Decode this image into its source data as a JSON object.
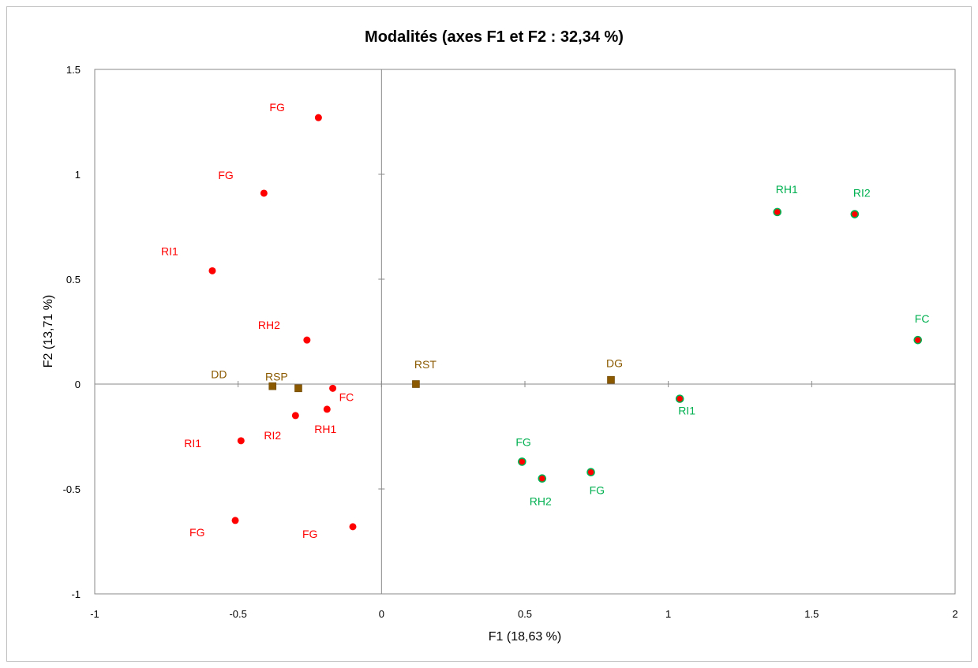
{
  "chart_data": {
    "type": "scatter",
    "title": "Modalités (axes F1 et F2 : 32,34 %)",
    "xlabel": "F1 (18,63 %)",
    "ylabel": "F2 (13,71 %)",
    "xlim": [
      -1,
      2
    ],
    "ylim": [
      -1,
      1.5
    ],
    "xticks": [
      -1,
      -0.5,
      0,
      0.5,
      1,
      1.5,
      2
    ],
    "yticks": [
      -1,
      -0.5,
      0,
      0.5,
      1,
      1.5
    ],
    "xtick_labels": [
      "-1",
      "-0.5",
      "0",
      "0.5",
      "1",
      "1.5",
      "2"
    ],
    "ytick_labels": [
      "-1",
      "-0.5",
      "0",
      "0.5",
      "1",
      "1.5"
    ],
    "grid": false,
    "series": [
      {
        "color": "#ff0000",
        "marker": "circle",
        "points": [
          {
            "label": "FG",
            "x": -0.22,
            "y": 1.27
          },
          {
            "label": "FG",
            "x": -0.41,
            "y": 0.91
          },
          {
            "label": "RI1",
            "x": -0.59,
            "y": 0.54
          },
          {
            "label": "RH2",
            "x": -0.26,
            "y": 0.21
          },
          {
            "label": "FC",
            "x": -0.17,
            "y": -0.02
          },
          {
            "label": "RH1",
            "x": -0.19,
            "y": -0.12
          },
          {
            "label": "RI2",
            "x": -0.3,
            "y": -0.15
          },
          {
            "label": "RI1",
            "x": -0.49,
            "y": -0.27
          },
          {
            "label": "FG",
            "x": -0.51,
            "y": -0.65
          },
          {
            "label": "FG",
            "x": -0.1,
            "y": -0.68
          }
        ]
      },
      {
        "color": "#8b5a00",
        "marker": "square",
        "points": [
          {
            "label": "DD",
            "x": -0.38,
            "y": -0.01
          },
          {
            "label": "RSP",
            "x": -0.29,
            "y": -0.02
          },
          {
            "label": "RST",
            "x": 0.12,
            "y": 0.0
          },
          {
            "label": "DG",
            "x": 0.8,
            "y": 0.02
          }
        ]
      },
      {
        "color": "#00b050",
        "marker": "circle",
        "points": [
          {
            "label": "RH1",
            "x": 1.38,
            "y": 0.82
          },
          {
            "label": "RI2",
            "x": 1.65,
            "y": 0.81
          },
          {
            "label": "FC",
            "x": 1.87,
            "y": 0.21
          },
          {
            "label": "RI1",
            "x": 1.04,
            "y": -0.07
          },
          {
            "label": "FG",
            "x": 0.49,
            "y": -0.37
          },
          {
            "label": "RH2",
            "x": 0.56,
            "y": -0.45
          },
          {
            "label": "FG",
            "x": 0.73,
            "y": -0.42
          }
        ]
      }
    ]
  }
}
